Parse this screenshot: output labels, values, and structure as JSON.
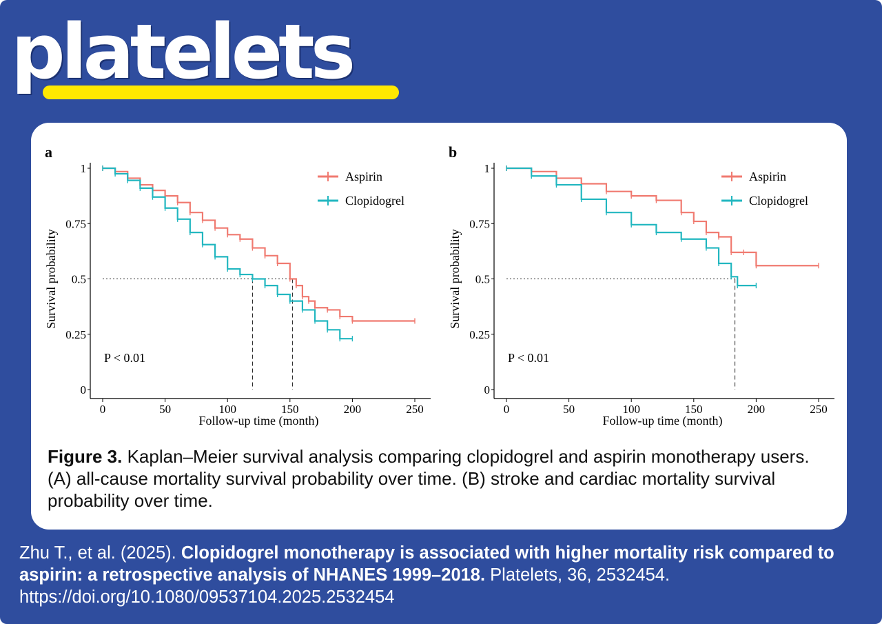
{
  "brand": {
    "logo_text": "platelets",
    "accent_color": "#ffe900",
    "background_color": "#2f4d9e"
  },
  "chart_data": [
    {
      "type": "line",
      "panel_label": "a",
      "xlabel": "Follow-up time (month)",
      "ylabel": "Survival probability",
      "xlim": [
        0,
        250
      ],
      "ylim": [
        0,
        1
      ],
      "xticks": [
        "0",
        "50",
        "100",
        "150",
        "200",
        "250"
      ],
      "yticks": [
        "0",
        "0.25",
        "0.5",
        "0.75",
        "1"
      ],
      "p_value_text": "P < 0.01",
      "median_reference": 0.5,
      "medians": [
        120,
        152
      ],
      "series": [
        {
          "name": "Aspirin",
          "color": "#f07a70",
          "x": [
            0,
            10,
            20,
            30,
            40,
            50,
            60,
            70,
            80,
            90,
            100,
            110,
            120,
            130,
            140,
            150,
            155,
            160,
            165,
            170,
            180,
            190,
            200,
            250
          ],
          "y": [
            1,
            0.985,
            0.955,
            0.925,
            0.9,
            0.875,
            0.845,
            0.8,
            0.765,
            0.73,
            0.7,
            0.68,
            0.64,
            0.605,
            0.57,
            0.5,
            0.47,
            0.42,
            0.4,
            0.37,
            0.36,
            0.33,
            0.31,
            0.31
          ]
        },
        {
          "name": "Clopidogrel",
          "color": "#22b7c0",
          "x": [
            0,
            10,
            20,
            30,
            40,
            50,
            60,
            70,
            80,
            90,
            100,
            110,
            120,
            130,
            140,
            150,
            160,
            170,
            180,
            190,
            200
          ],
          "y": [
            1,
            0.975,
            0.945,
            0.91,
            0.87,
            0.82,
            0.77,
            0.71,
            0.655,
            0.6,
            0.545,
            0.52,
            0.5,
            0.47,
            0.43,
            0.4,
            0.36,
            0.31,
            0.27,
            0.23,
            0.23
          ]
        }
      ]
    },
    {
      "type": "line",
      "panel_label": "b",
      "xlabel": "Follow-up time (month)",
      "ylabel": "Survival probability",
      "xlim": [
        0,
        250
      ],
      "ylim": [
        0,
        1
      ],
      "xticks": [
        "0",
        "50",
        "100",
        "150",
        "200",
        "250"
      ],
      "yticks": [
        "0",
        "0.25",
        "0.5",
        "0.75",
        "1"
      ],
      "p_value_text": "P < 0.01",
      "median_reference": 0.5,
      "medians": [
        183
      ],
      "series": [
        {
          "name": "Aspirin",
          "color": "#f07a70",
          "x": [
            0,
            20,
            40,
            60,
            80,
            100,
            120,
            140,
            150,
            160,
            170,
            180,
            190,
            200,
            250
          ],
          "y": [
            1,
            0.985,
            0.955,
            0.93,
            0.895,
            0.875,
            0.855,
            0.8,
            0.76,
            0.71,
            0.69,
            0.62,
            0.62,
            0.56,
            0.56
          ]
        },
        {
          "name": "Clopidogrel",
          "color": "#22b7c0",
          "x": [
            0,
            20,
            40,
            60,
            80,
            100,
            120,
            140,
            160,
            170,
            180,
            185,
            200
          ],
          "y": [
            1,
            0.965,
            0.925,
            0.86,
            0.8,
            0.745,
            0.71,
            0.68,
            0.64,
            0.57,
            0.51,
            0.47,
            0.47
          ]
        }
      ]
    }
  ],
  "caption": {
    "label": "Figure 3.",
    "text": " Kaplan–Meier survival analysis comparing clopidogrel and aspirin monotherapy users. (A) all-cause mortality survival probability over time. (B) stroke and cardiac mortality survival probability over time."
  },
  "citation": {
    "authors": "Zhu T., et al. (2025). ",
    "title": "Clopidogrel monotherapy is associated with higher mortality risk compared to aspirin: a retrospective analysis of NHANES 1999–2018.",
    "journal": " Platelets, 36, 2532454. https://doi.org/10.1080/09537104.2025.2532454"
  }
}
